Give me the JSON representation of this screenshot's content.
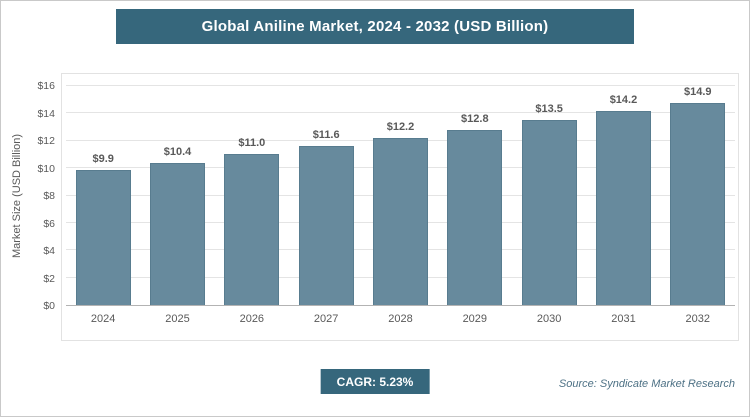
{
  "title": "Global Aniline Market, 2024 - 2032 (USD Billion)",
  "chart_data": {
    "type": "bar",
    "title": "Global Aniline Market, 2024 - 2032 (USD Billion)",
    "categories": [
      "2024",
      "2025",
      "2026",
      "2027",
      "2028",
      "2029",
      "2030",
      "2031",
      "2032"
    ],
    "values": [
      9.9,
      10.4,
      11.0,
      11.6,
      12.2,
      12.8,
      13.5,
      14.2,
      14.9
    ],
    "value_labels": [
      "$9.9",
      "$10.4",
      "$11.0",
      "$11.6",
      "$12.2",
      "$12.8",
      "$13.5",
      "$14.2",
      "$14.9"
    ],
    "xlabel": "",
    "ylabel": "Market Size (USD Billion)",
    "ylim": [
      0,
      16
    ],
    "yticks": [
      0,
      2,
      4,
      6,
      8,
      10,
      12,
      14,
      16
    ],
    "ytick_labels": [
      "$0",
      "$2",
      "$4",
      "$6",
      "$8",
      "$10",
      "$12",
      "$14",
      "$16"
    ],
    "grid": true,
    "legend": "none",
    "bar_color": "#678a9d",
    "accent_color": "#36677c"
  },
  "footer": {
    "cagr_label": "CAGR: 5.23%",
    "source": "Source: Syndicate Market Research"
  }
}
